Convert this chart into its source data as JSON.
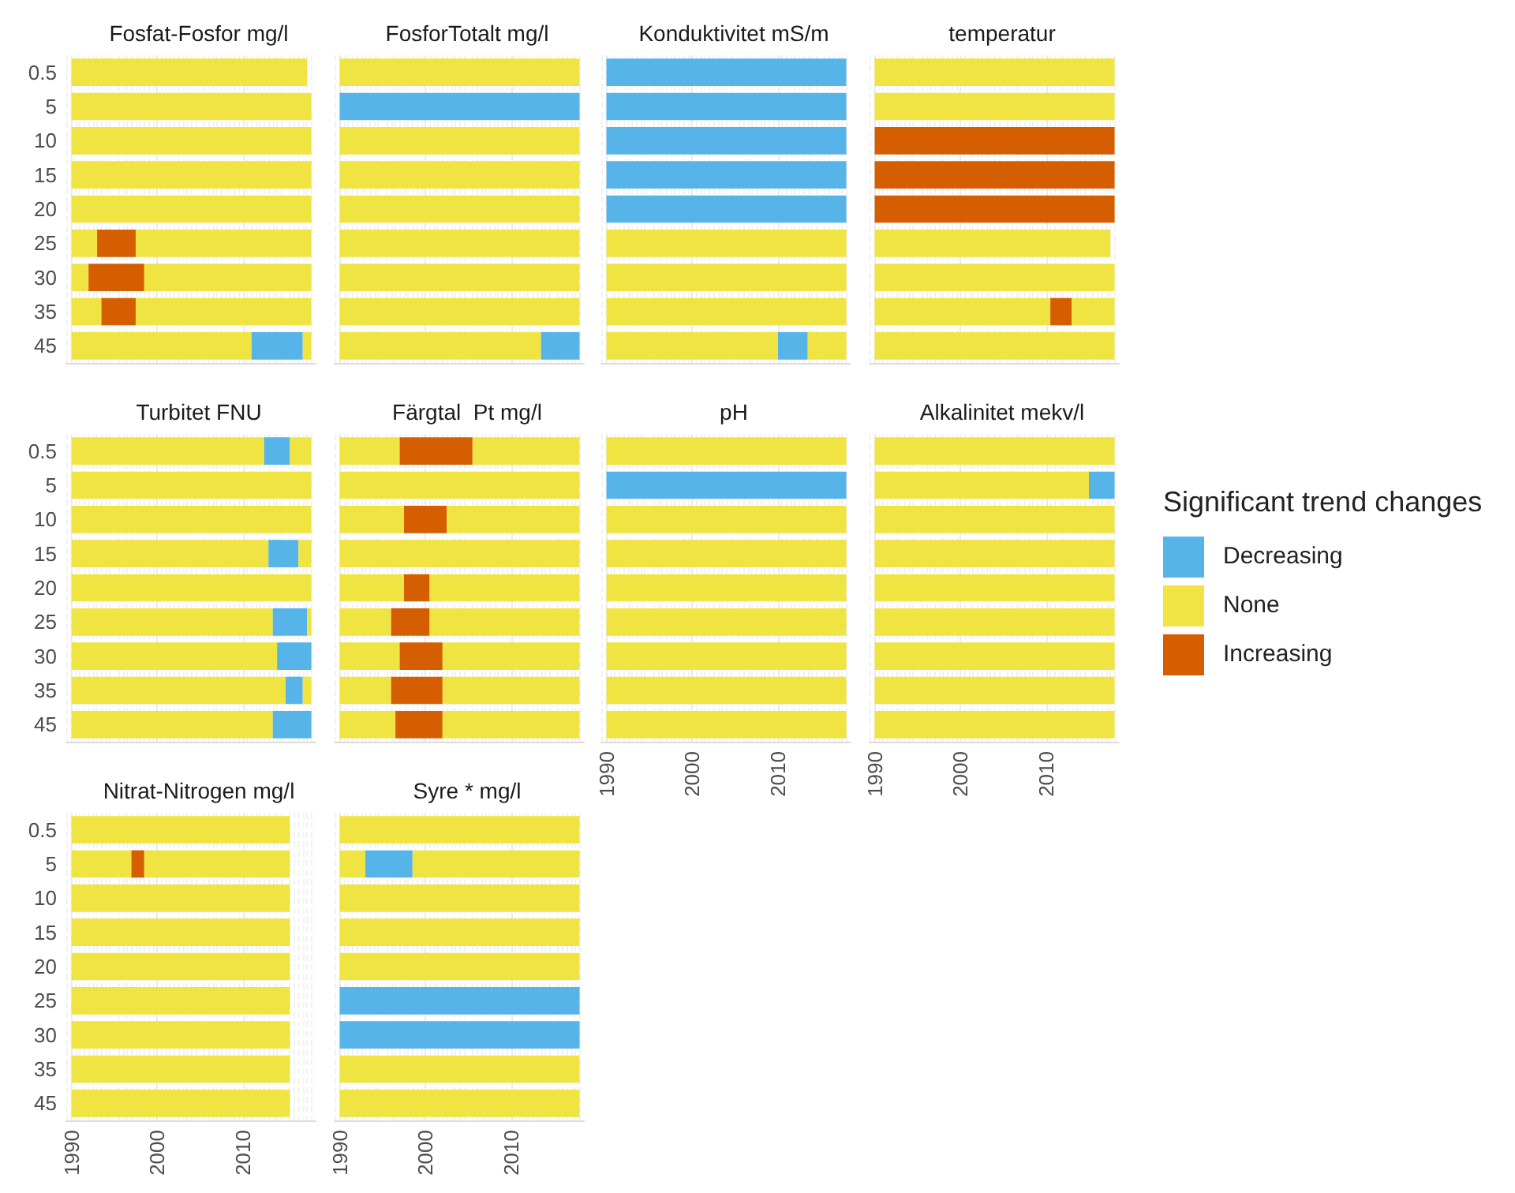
{
  "chart_data": [
    {
      "type": "bar",
      "orientation": "horizontal",
      "title": "Fosfat-Fosfor mg/l",
      "categories": [
        "0.5",
        "5",
        "10",
        "15",
        "20",
        "25",
        "30",
        "35",
        "45"
      ],
      "xlim": [
        1989.4,
        2018.5
      ],
      "xticks": [
        1990,
        2000,
        2010
      ],
      "tick_labels": "y",
      "grid": "x",
      "legend": "right",
      "legend_title": "Significant trend changes",
      "series": [
        {
          "name": "Decreasing",
          "color": "#56b4e9",
          "base": [
            null,
            null,
            null,
            null,
            null,
            null,
            null,
            null,
            2011
          ],
          "values": [
            null,
            null,
            null,
            null,
            null,
            null,
            null,
            null,
            6
          ]
        },
        {
          "name": "None",
          "color": "#f0e442",
          "base": [
            1990,
            1990,
            1990,
            1990,
            1990,
            1990,
            1990,
            1990,
            1990
          ],
          "values": [
            27.5,
            28,
            28,
            28,
            28,
            3,
            2,
            3.5,
            21
          ]
        },
        {
          "name": "Increasing",
          "color": "#d55e00",
          "base": [
            null,
            null,
            null,
            null,
            null,
            1993,
            1992,
            1993.5,
            null
          ],
          "values": [
            null,
            null,
            null,
            null,
            null,
            4.5,
            6.5,
            4,
            null
          ]
        },
        {
          "color": "#f0e442",
          "base": [
            null,
            null,
            null,
            null,
            null,
            1997.5,
            1998.5,
            1997.5,
            2017
          ],
          "values": [
            null,
            null,
            null,
            null,
            null,
            20.5,
            19.5,
            20.5,
            1
          ]
        }
      ]
    },
    {
      "type": "bar",
      "orientation": "horizontal",
      "title": "FosforTotalt mg/l",
      "categories": [
        "0.5",
        "5",
        "10",
        "15",
        "20",
        "25",
        "30",
        "35",
        "45"
      ],
      "xlim": [
        1989.4,
        2018.5
      ],
      "xticks": [
        1990,
        2000,
        2010
      ],
      "tick_labels": false,
      "grid": "x",
      "series": [
        {
          "color": "#f0e442",
          "base": [
            1990,
            null,
            1990,
            1990,
            1990,
            1990,
            1990,
            1990,
            1990
          ],
          "values": [
            28,
            null,
            28,
            28,
            28,
            28,
            28,
            28,
            23.5
          ]
        },
        {
          "color": "#56b4e9",
          "base": [
            null,
            1990,
            null,
            null,
            null,
            null,
            null,
            null,
            2013.5
          ],
          "values": [
            null,
            28,
            null,
            null,
            null,
            null,
            null,
            null,
            4.5
          ]
        }
      ]
    },
    {
      "type": "bar",
      "orientation": "horizontal",
      "title": "Konduktivitet mS/m",
      "categories": [
        "0.5",
        "5",
        "10",
        "15",
        "20",
        "25",
        "30",
        "35",
        "45"
      ],
      "xlim": [
        1989.4,
        2018.5
      ],
      "xticks": [
        1990,
        2000,
        2010
      ],
      "tick_labels": false,
      "grid": "x",
      "series": [
        {
          "color": "#56b4e9",
          "base": [
            1990,
            1990,
            1990,
            1990,
            1990,
            null,
            null,
            null,
            2010
          ],
          "values": [
            28,
            28,
            28,
            28,
            28,
            null,
            null,
            null,
            3.5
          ]
        },
        {
          "color": "#f0e442",
          "base": [
            null,
            null,
            null,
            null,
            null,
            1990,
            1990,
            1990,
            1990
          ],
          "values": [
            null,
            null,
            null,
            null,
            null,
            28,
            28,
            28,
            20
          ]
        },
        {
          "color": "#f0e442",
          "base": [
            null,
            null,
            null,
            null,
            null,
            null,
            null,
            null,
            2013.5
          ],
          "values": [
            null,
            null,
            null,
            null,
            null,
            null,
            null,
            null,
            4.5
          ]
        }
      ]
    },
    {
      "type": "bar",
      "orientation": "horizontal",
      "title": "temperatur",
      "categories": [
        "0.5",
        "5",
        "10",
        "15",
        "20",
        "25",
        "30",
        "35",
        "45"
      ],
      "xlim": [
        1989.4,
        2018.5
      ],
      "xticks": [
        1990,
        2000,
        2010
      ],
      "tick_labels": false,
      "grid": "x",
      "series": [
        {
          "color": "#f0e442",
          "base": [
            1990,
            1990,
            null,
            null,
            null,
            1990,
            1990,
            1990,
            1990
          ],
          "values": [
            28,
            28,
            null,
            null,
            null,
            27.5,
            28,
            20.5,
            28
          ]
        },
        {
          "color": "#d55e00",
          "base": [
            null,
            null,
            1990,
            1990,
            1990,
            null,
            null,
            2010.5,
            null
          ],
          "values": [
            null,
            null,
            28,
            28,
            28,
            null,
            null,
            2.5,
            null
          ]
        },
        {
          "color": "#f0e442",
          "base": [
            null,
            null,
            null,
            null,
            null,
            null,
            null,
            2013,
            null
          ],
          "values": [
            null,
            null,
            null,
            null,
            null,
            null,
            null,
            5,
            null
          ]
        }
      ]
    },
    {
      "type": "bar",
      "orientation": "horizontal",
      "title": "Turbitet FNU",
      "categories": [
        "0.5",
        "5",
        "10",
        "15",
        "20",
        "25",
        "30",
        "35",
        "45"
      ],
      "xlim": [
        1989.4,
        2018.5
      ],
      "xticks": [
        1990,
        2000,
        2010
      ],
      "tick_labels": "y",
      "grid": "x",
      "series": [
        {
          "color": "#f0e442",
          "base": [
            1990,
            1990,
            1990,
            1990,
            1990,
            1990,
            1990,
            1990,
            1990
          ],
          "values": [
            22.5,
            28,
            28,
            23,
            28,
            23.5,
            24,
            25,
            23.5
          ]
        },
        {
          "color": "#56b4e9",
          "base": [
            2012.5,
            null,
            null,
            2013,
            null,
            2013.5,
            2014,
            2015,
            2013.5
          ],
          "values": [
            3,
            null,
            null,
            3.5,
            null,
            4,
            4,
            2,
            4.5
          ]
        },
        {
          "color": "#f0e442",
          "base": [
            2015.5,
            null,
            null,
            2016.5,
            null,
            2017.5,
            null,
            2017,
            null
          ],
          "values": [
            2.5,
            null,
            null,
            1.5,
            null,
            0.5,
            null,
            1,
            null
          ]
        }
      ]
    },
    {
      "type": "bar",
      "orientation": "horizontal",
      "title": "Färgtal  Pt mg/l",
      "categories": [
        "0.5",
        "5",
        "10",
        "15",
        "20",
        "25",
        "30",
        "35",
        "45"
      ],
      "xlim": [
        1989.4,
        2018.5
      ],
      "xticks": [
        1990,
        2000,
        2010
      ],
      "tick_labels": false,
      "grid": "x",
      "series": [
        {
          "color": "#f0e442",
          "base": [
            1990,
            1990,
            1990,
            1990,
            1990,
            1990,
            1990,
            1990,
            1990
          ],
          "values": [
            7,
            28,
            7.5,
            28,
            7.5,
            6,
            7,
            6,
            6.5
          ]
        },
        {
          "color": "#d55e00",
          "base": [
            1997,
            null,
            1997.5,
            null,
            1997.5,
            1996,
            1997,
            1996,
            1996.5
          ],
          "values": [
            8.5,
            null,
            5,
            null,
            3,
            4.5,
            5,
            6,
            5.5
          ]
        },
        {
          "color": "#f0e442",
          "base": [
            2005.5,
            null,
            2002.5,
            null,
            2000.5,
            2000.5,
            2002,
            2002,
            2002
          ],
          "values": [
            12.5,
            null,
            15.5,
            null,
            17.5,
            17.5,
            16,
            16,
            16
          ]
        }
      ]
    },
    {
      "type": "bar",
      "orientation": "horizontal",
      "title": "pH",
      "categories": [
        "0.5",
        "5",
        "10",
        "15",
        "20",
        "25",
        "30",
        "35",
        "45"
      ],
      "xlim": [
        1989.4,
        2018.5
      ],
      "xticks": [
        1990,
        2000,
        2010
      ],
      "tick_labels": "x",
      "grid": "x",
      "series": [
        {
          "color": "#f0e442",
          "base": [
            1990,
            null,
            1990,
            1990,
            1990,
            1990,
            1990,
            1990,
            1990
          ],
          "values": [
            28,
            null,
            28,
            28,
            28,
            28,
            28,
            28,
            28
          ]
        },
        {
          "color": "#56b4e9",
          "base": [
            null,
            1990,
            null,
            null,
            null,
            null,
            null,
            null,
            null
          ],
          "values": [
            null,
            28,
            null,
            null,
            null,
            null,
            null,
            null,
            null
          ]
        }
      ]
    },
    {
      "type": "bar",
      "orientation": "horizontal",
      "title": "Alkalinitet mekv/l",
      "categories": [
        "0.5",
        "5",
        "10",
        "15",
        "20",
        "25",
        "30",
        "35",
        "45"
      ],
      "xlim": [
        1989.4,
        2018.5
      ],
      "xticks": [
        1990,
        2000,
        2010
      ],
      "tick_labels": "x",
      "grid": "x",
      "series": [
        {
          "color": "#f0e442",
          "base": [
            1990,
            1990,
            1990,
            1990,
            1990,
            1990,
            1990,
            1990,
            1990
          ],
          "values": [
            28,
            25,
            28,
            28,
            28,
            28,
            28,
            28,
            28
          ]
        },
        {
          "color": "#56b4e9",
          "base": [
            null,
            2015,
            null,
            null,
            null,
            null,
            null,
            null,
            null
          ],
          "values": [
            null,
            3,
            null,
            null,
            null,
            null,
            null,
            null,
            null
          ]
        }
      ]
    },
    {
      "type": "bar",
      "orientation": "horizontal",
      "title": "Nitrat-Nitrogen mg/l",
      "categories": [
        "0.5",
        "5",
        "10",
        "15",
        "20",
        "25",
        "30",
        "35",
        "45"
      ],
      "xlim": [
        1989.4,
        2018.5
      ],
      "xticks": [
        1990,
        2000,
        2010
      ],
      "grid": "x",
      "series": [
        {
          "color": "#f0e442",
          "base": [
            1990,
            1990,
            1990,
            1990,
            1990,
            1990,
            1990,
            1990,
            1990
          ],
          "values": [
            25.5,
            7,
            25.5,
            25.5,
            25.5,
            25.5,
            25.5,
            25.5,
            25.5
          ]
        },
        {
          "color": "#d55e00",
          "base": [
            null,
            1997,
            null,
            null,
            null,
            null,
            null,
            null,
            null
          ],
          "values": [
            null,
            1.5,
            null,
            null,
            null,
            null,
            null,
            null,
            null
          ]
        },
        {
          "color": "#f0e442",
          "base": [
            null,
            1998.5,
            null,
            null,
            null,
            null,
            null,
            null,
            null
          ],
          "values": [
            null,
            17,
            null,
            null,
            null,
            null,
            null,
            null,
            null
          ]
        }
      ]
    },
    {
      "type": "bar",
      "orientation": "horizontal",
      "title": "Syre * mg/l",
      "categories": [
        "0.5",
        "5",
        "10",
        "15",
        "20",
        "25",
        "30",
        "35",
        "45"
      ],
      "xlim": [
        1989.4,
        2018.5
      ],
      "xticks": [
        1990,
        2000,
        2010
      ],
      "tick_labels": "x",
      "grid": "x",
      "series": [
        {
          "color": "#f0e442",
          "base": [
            1990,
            1990,
            1990,
            1990,
            1990,
            null,
            null,
            1990,
            1990
          ],
          "values": [
            28,
            3,
            28,
            28,
            28,
            null,
            null,
            28,
            28
          ]
        },
        {
          "color": "#56b4e9",
          "base": [
            null,
            1993,
            null,
            null,
            null,
            1990,
            1990,
            null,
            null
          ],
          "values": [
            null,
            5.5,
            null,
            null,
            null,
            28,
            28,
            null,
            null
          ]
        },
        {
          "color": "#f0e442",
          "base": [
            null,
            1998.5,
            null,
            null,
            null,
            null,
            null,
            null,
            null
          ],
          "values": [
            null,
            19.5,
            null,
            null,
            null,
            null,
            null,
            null,
            null
          ]
        }
      ]
    }
  ]
}
